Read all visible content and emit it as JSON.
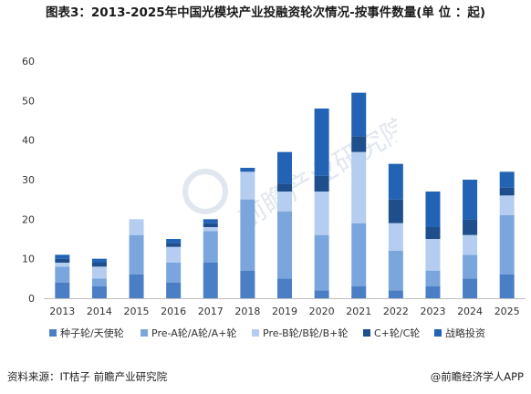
{
  "title": "图表3：2013-2025年中国光模块产业投融资轮次情况-按事件数量(单 位 ：起)",
  "source_text": "资料来源：IT桔子 前瞻产业研究院",
  "brand_text": "@前瞻经济学人APP",
  "watermark_text": "前瞻产业研究院",
  "colors": {
    "seed": "#4A7FC5",
    "a_round": "#7AA6DD",
    "b_round": "#B4CDF0",
    "c_round": "#1E4E8C",
    "strategic": "#2263B5",
    "axis": "#bfbfbf",
    "grid": "#e6e6e6"
  },
  "chart_data": {
    "type": "bar",
    "stacked": true,
    "categories": [
      "2013",
      "2014",
      "2015",
      "2016",
      "2017",
      "2018",
      "2019",
      "2020",
      "2021",
      "2022",
      "2023",
      "2024",
      "2025"
    ],
    "ylim": [
      0,
      60
    ],
    "yticks": [
      0,
      10,
      20,
      30,
      40,
      50,
      60
    ],
    "grid": false,
    "legend_position": "bottom",
    "series": [
      {
        "name": "种子轮/天使轮",
        "color": "#4A7FC5",
        "values": [
          4,
          3,
          6,
          4,
          9,
          7,
          5,
          2,
          3,
          2,
          3,
          5,
          6
        ]
      },
      {
        "name": "Pre-A轮/A轮/A+轮",
        "color": "#7AA6DD",
        "values": [
          4,
          2,
          10,
          5,
          8,
          18,
          17,
          14,
          16,
          10,
          4,
          6,
          15
        ]
      },
      {
        "name": "Pre-B轮/B轮/B+轮",
        "color": "#B4CDF0",
        "values": [
          1,
          3,
          4,
          4,
          1,
          7,
          5,
          11,
          18,
          7,
          8,
          5,
          5
        ]
      },
      {
        "name": "C+轮/C轮",
        "color": "#1E4E8C",
        "values": [
          1,
          1,
          0,
          1,
          1,
          0,
          2,
          4,
          4,
          6,
          3,
          4,
          2
        ]
      },
      {
        "name": "战略投资",
        "color": "#2263B5",
        "values": [
          1,
          1,
          0,
          1,
          1,
          1,
          8,
          17,
          11,
          9,
          9,
          10,
          4
        ]
      }
    ]
  }
}
